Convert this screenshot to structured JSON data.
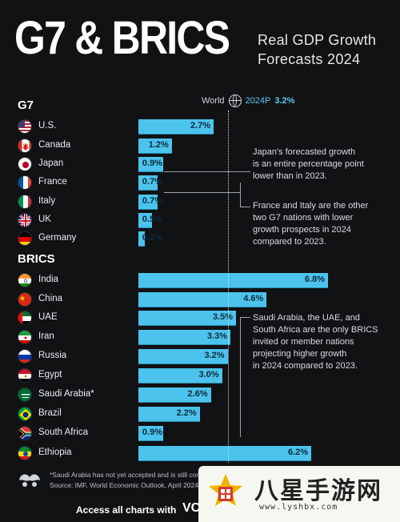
{
  "header": {
    "big_title": "G7 & BRICS",
    "subtitle_line1": "Real GDP Growth",
    "subtitle_line2": "Forecasts 2024"
  },
  "world_reference": {
    "label": "World",
    "period": "2024P",
    "value_text": "3.2%",
    "value": 3.2
  },
  "chart_data": {
    "type": "bar",
    "orientation": "horizontal",
    "title": "G7 & BRICS Real GDP Growth Forecasts 2024",
    "unit": "%",
    "reference_line": {
      "label": "World 2024P",
      "value": 3.2
    },
    "groups": [
      {
        "name": "G7",
        "categories": [
          "U.S.",
          "Canada",
          "Japan",
          "France",
          "Italy",
          "UK",
          "Germany"
        ],
        "values": [
          2.7,
          1.2,
          0.9,
          0.7,
          0.7,
          0.5,
          0.2
        ],
        "labels": [
          "2.7%",
          "1.2%",
          "0.9%",
          "0.7%",
          "0.7%",
          "0.5%",
          "0.2%"
        ],
        "flags": [
          "us-flag-icon",
          "canada-flag-icon",
          "japan-flag-icon",
          "france-flag-icon",
          "italy-flag-icon",
          "uk-flag-icon",
          "germany-flag-icon"
        ]
      },
      {
        "name": "BRICS",
        "categories": [
          "India",
          "China",
          "UAE",
          "Iran",
          "Russia",
          "Egypt",
          "Saudi Arabia*",
          "Brazil",
          "South Africa",
          "Ethiopia"
        ],
        "values": [
          6.8,
          4.6,
          3.5,
          3.3,
          3.2,
          3.0,
          2.6,
          2.2,
          0.9,
          6.2
        ],
        "labels": [
          "6.8%",
          "4.6%",
          "3.5%",
          "3.3%",
          "3.2%",
          "3.0%",
          "2.6%",
          "2.2%",
          "0.9%",
          "6.2%"
        ],
        "flags": [
          "india-flag-icon",
          "china-flag-icon",
          "uae-flag-icon",
          "iran-flag-icon",
          "russia-flag-icon",
          "egypt-flag-icon",
          "saudi-flag-icon",
          "brazil-flag-icon",
          "south-africa-flag-icon",
          "ethiopia-flag-icon"
        ]
      }
    ],
    "colors": {
      "bar": "#4cc3ec",
      "background": "#111214",
      "world": "#5cc8f0"
    }
  },
  "notes": {
    "japan": [
      "Japan's forecasted growth",
      "is an entire percentage point",
      "lower than in 2023."
    ],
    "france_italy": [
      "France and Italy are the other",
      "two G7 nations with lower",
      "growth prospects in 2024",
      "compared to 2023."
    ],
    "brics": [
      "Saudi Arabia, the UAE, and",
      "South Africa are the only BRICS",
      "invited or member nations",
      "projecting higher growth",
      "in 2024 compared to 2023."
    ]
  },
  "footnote": {
    "line1": "*Saudi Arabia has not yet accepted and is still con",
    "line2": "Source: IMF, World Economic Outlook, April 2024"
  },
  "footer": {
    "text": "Access all charts with",
    "brand": "VC"
  },
  "watermark": {
    "name": "八星手游网",
    "url": "www.lyshbx.com"
  }
}
